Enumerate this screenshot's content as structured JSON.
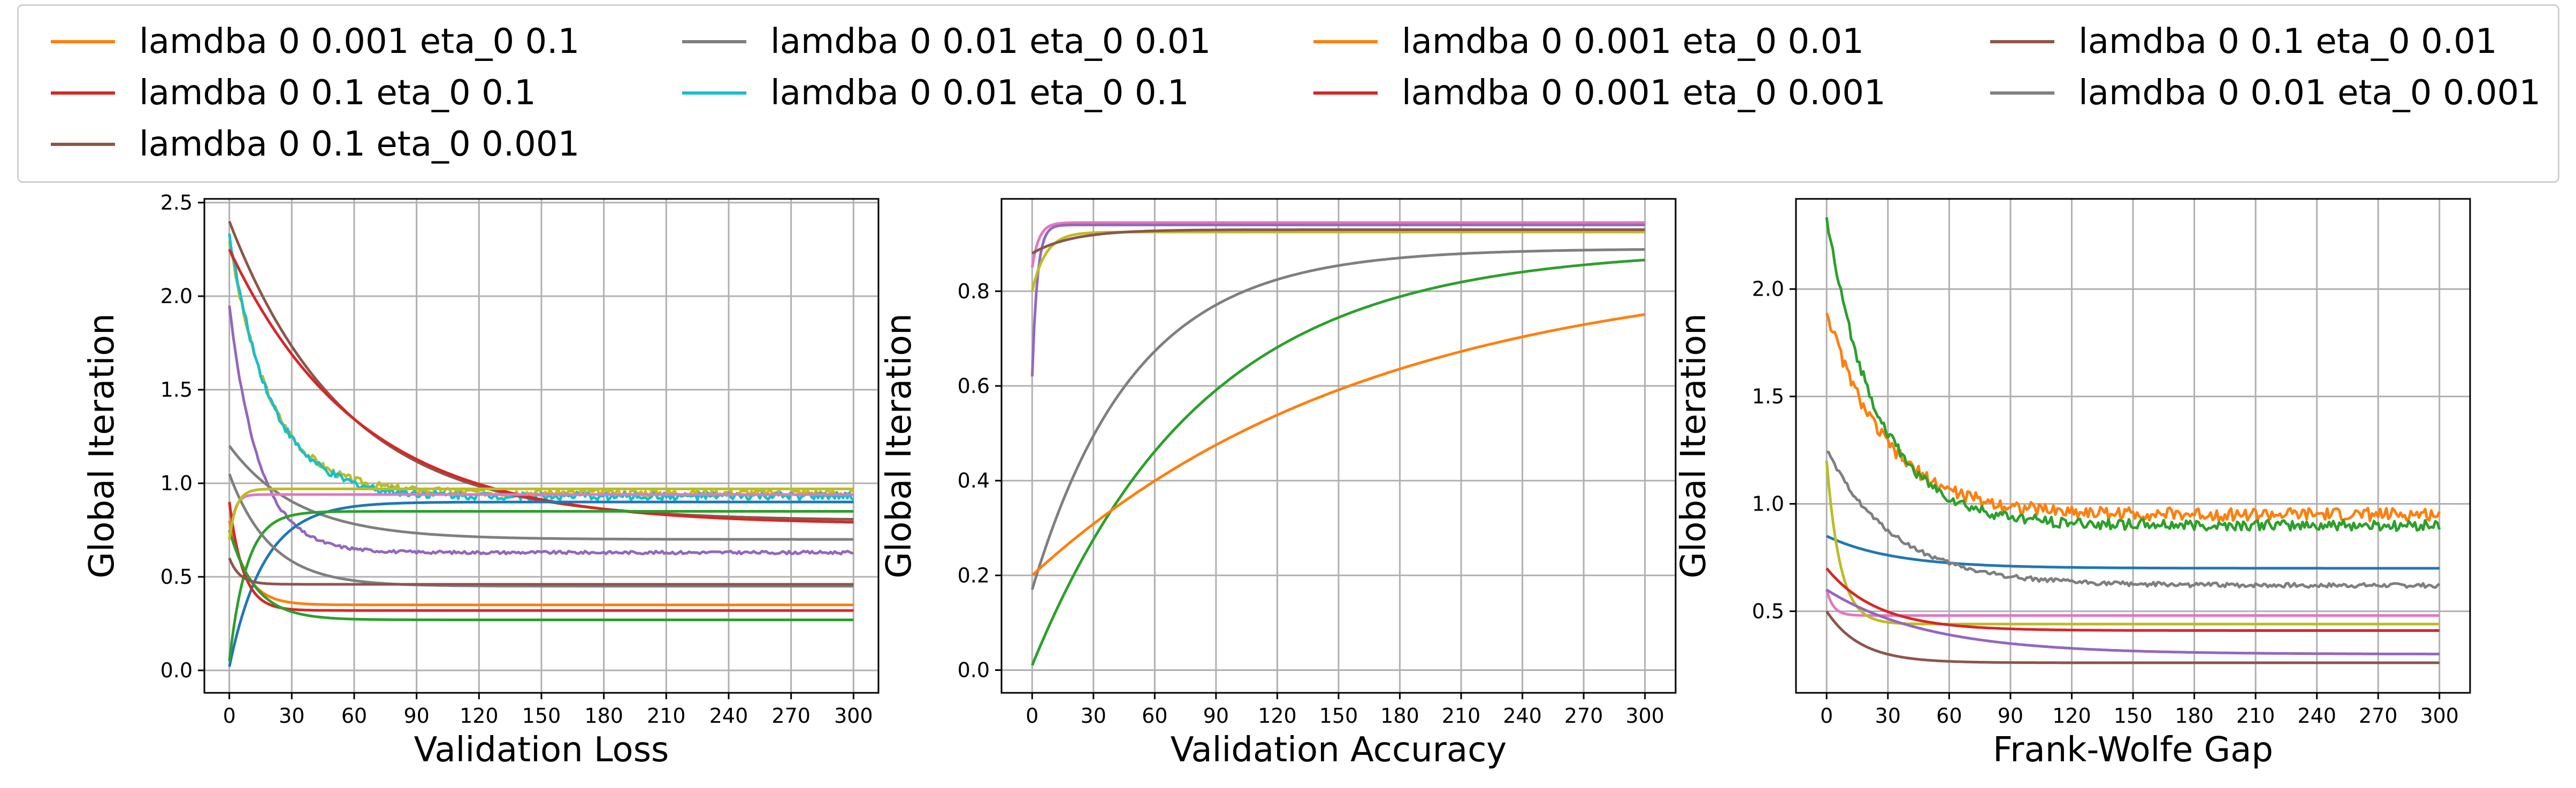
{
  "legend": {
    "entries": [
      {
        "label": "lamdba 0 0.001 eta_0 0.1",
        "color": "#ff7f0e"
      },
      {
        "label": "lamdba 0 0.01 eta_0 0.01",
        "color": "#7f7f7f"
      },
      {
        "label": "lamdba 0 0.001 eta_0 0.01",
        "color": "#ff7f0e"
      },
      {
        "label": "lamdba 0 0.1 eta_0 0.01",
        "color": "#8c564b"
      },
      {
        "label": "lamdba 0 0.1 eta_0 0.1",
        "color": "#d62728"
      },
      {
        "label": "lamdba 0 0.01 eta_0 0.1",
        "color": "#17becf"
      },
      {
        "label": "lamdba 0 0.001 eta_0 0.001",
        "color": "#d62728"
      },
      {
        "label": "lamdba 0 0.01 eta_0 0.001",
        "color": "#7f7f7f"
      },
      {
        "label": "lamdba 0 0.1 eta_0 0.001",
        "color": "#8c564b"
      }
    ]
  },
  "chart_data": [
    {
      "type": "line",
      "xlabel": "Validation Loss",
      "ylabel": "Global Iteration",
      "xlim": [
        -12,
        312
      ],
      "ylim": [
        -0.12,
        2.52
      ],
      "xticks": [
        0,
        30,
        60,
        90,
        120,
        150,
        180,
        210,
        240,
        270,
        300
      ],
      "yticks": [
        0.0,
        0.5,
        1.0,
        1.5,
        2.0,
        2.5
      ],
      "ytick_labels": [
        "0.0",
        "0.5",
        "1.0",
        "1.5",
        "2.0",
        "2.5"
      ],
      "grid": true,
      "series": [
        {
          "color": "#bcbd22",
          "start": 2.3,
          "end": 0.95,
          "k": 0.05,
          "noise": 0.02
        },
        {
          "color": "#17becf",
          "start": 2.33,
          "end": 0.93,
          "k": 0.05,
          "noise": 0.02
        },
        {
          "color": "#8c564b",
          "start": 2.4,
          "end": 0.8,
          "k": 0.018,
          "noise": 0.0
        },
        {
          "color": "#d62728",
          "start": 2.25,
          "end": 0.78,
          "k": 0.016,
          "noise": 0.0
        },
        {
          "color": "#9467bd",
          "start": 1.95,
          "end": 0.63,
          "k": 0.07,
          "noise": 0.008
        },
        {
          "color": "#7f7f7f",
          "start": 1.2,
          "end": 0.7,
          "k": 0.03,
          "noise": 0.0
        },
        {
          "color": "#1f77b4",
          "start": 0.02,
          "end": 0.9,
          "k": 0.06,
          "noise": 0.0
        },
        {
          "color": "#e377c2",
          "start": 0.7,
          "end": 0.94,
          "k": 0.4,
          "noise": 0.0
        },
        {
          "color": "#2ca02c",
          "start": 0.05,
          "end": 0.85,
          "k": 0.12,
          "noise": 0.0
        },
        {
          "color": "#7f7f7f",
          "start": 1.05,
          "end": 0.45,
          "k": 0.05,
          "noise": 0.0
        },
        {
          "color": "#ff7f0e",
          "start": 0.8,
          "end": 0.35,
          "k": 0.12,
          "noise": 0.0
        },
        {
          "color": "#d62728",
          "start": 0.9,
          "end": 0.32,
          "k": 0.15,
          "noise": 0.0
        },
        {
          "color": "#2ca02c",
          "start": 0.75,
          "end": 0.27,
          "k": 0.08,
          "noise": 0.0
        },
        {
          "color": "#8c564b",
          "start": 0.6,
          "end": 0.46,
          "k": 0.2,
          "noise": 0.0
        },
        {
          "color": "#bcbd22",
          "start": 0.7,
          "end": 0.97,
          "k": 0.3,
          "noise": 0.0
        }
      ]
    },
    {
      "type": "line",
      "xlabel": "Validation Accuracy",
      "ylabel": "Global Iteration",
      "xlim": [
        -15,
        315
      ],
      "ylim": [
        -0.048,
        0.995
      ],
      "xticks": [
        0,
        30,
        60,
        90,
        120,
        150,
        180,
        210,
        240,
        270,
        300
      ],
      "yticks": [
        0.0,
        0.2,
        0.4,
        0.6,
        0.8
      ],
      "ytick_labels": [
        "0.0",
        "0.2",
        "0.4",
        "0.6",
        "0.8"
      ],
      "grid": true,
      "series": [
        {
          "color": "#e377c2",
          "start": 0.85,
          "end": 0.945,
          "k": 0.3,
          "noise": 0.0
        },
        {
          "color": "#9467bd",
          "start": 0.62,
          "end": 0.94,
          "k": 0.4,
          "noise": 0.0
        },
        {
          "color": "#bcbd22",
          "start": 0.8,
          "end": 0.925,
          "k": 0.15,
          "noise": 0.0
        },
        {
          "color": "#8c564b",
          "start": 0.88,
          "end": 0.93,
          "k": 0.05,
          "noise": 0.0
        },
        {
          "color": "#7f7f7f",
          "start": 0.17,
          "end": 0.89,
          "k": 0.02,
          "noise": 0.0
        },
        {
          "color": "#2ca02c",
          "start": 0.01,
          "end": 0.89,
          "k": 0.012,
          "noise": 0.0
        },
        {
          "color": "#ff7f0e",
          "start": 0.2,
          "end": 0.86,
          "k": 0.006,
          "noise": 0.0
        }
      ]
    },
    {
      "type": "line",
      "xlabel": "Frank-Wolfe Gap",
      "ylabel": "Global Iteration",
      "xlim": [
        -15,
        315
      ],
      "ylim": [
        0.12,
        2.42
      ],
      "xticks": [
        0,
        30,
        60,
        90,
        120,
        150,
        180,
        210,
        240,
        270,
        300
      ],
      "yticks": [
        0.5,
        1.0,
        1.5,
        2.0
      ],
      "ytick_labels": [
        "0.5",
        "1.0",
        "1.5",
        "2.0"
      ],
      "grid": true,
      "series": [
        {
          "color": "#ff7f0e",
          "start": 1.9,
          "end": 0.95,
          "k": 0.035,
          "noise": 0.03
        },
        {
          "color": "#2ca02c",
          "start": 2.33,
          "end": 0.9,
          "k": 0.04,
          "noise": 0.025
        },
        {
          "color": "#1f77b4",
          "start": 0.85,
          "end": 0.7,
          "k": 0.03,
          "noise": 0.0
        },
        {
          "color": "#7f7f7f",
          "start": 1.25,
          "end": 0.62,
          "k": 0.03,
          "noise": 0.01
        },
        {
          "color": "#e377c2",
          "start": 0.6,
          "end": 0.48,
          "k": 0.3,
          "noise": 0.0
        },
        {
          "color": "#bcbd22",
          "start": 1.2,
          "end": 0.44,
          "k": 0.15,
          "noise": 0.0
        },
        {
          "color": "#d62728",
          "start": 0.7,
          "end": 0.41,
          "k": 0.04,
          "noise": 0.0
        },
        {
          "color": "#9467bd",
          "start": 0.6,
          "end": 0.3,
          "k": 0.02,
          "noise": 0.0
        },
        {
          "color": "#8c564b",
          "start": 0.5,
          "end": 0.26,
          "k": 0.06,
          "noise": 0.0
        }
      ]
    }
  ]
}
